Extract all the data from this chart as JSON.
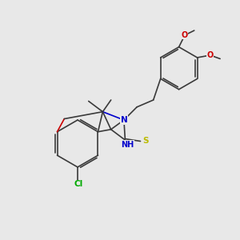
{
  "bg_color": "#e8e8e8",
  "bond_color": "#3a3a3a",
  "atom_colors": {
    "O": "#cc0000",
    "N": "#0000cc",
    "S": "#bbbb00",
    "Cl": "#00aa00",
    "C": "#3a3a3a"
  },
  "font_size_atom": 7.5,
  "font_size_label": 7
}
